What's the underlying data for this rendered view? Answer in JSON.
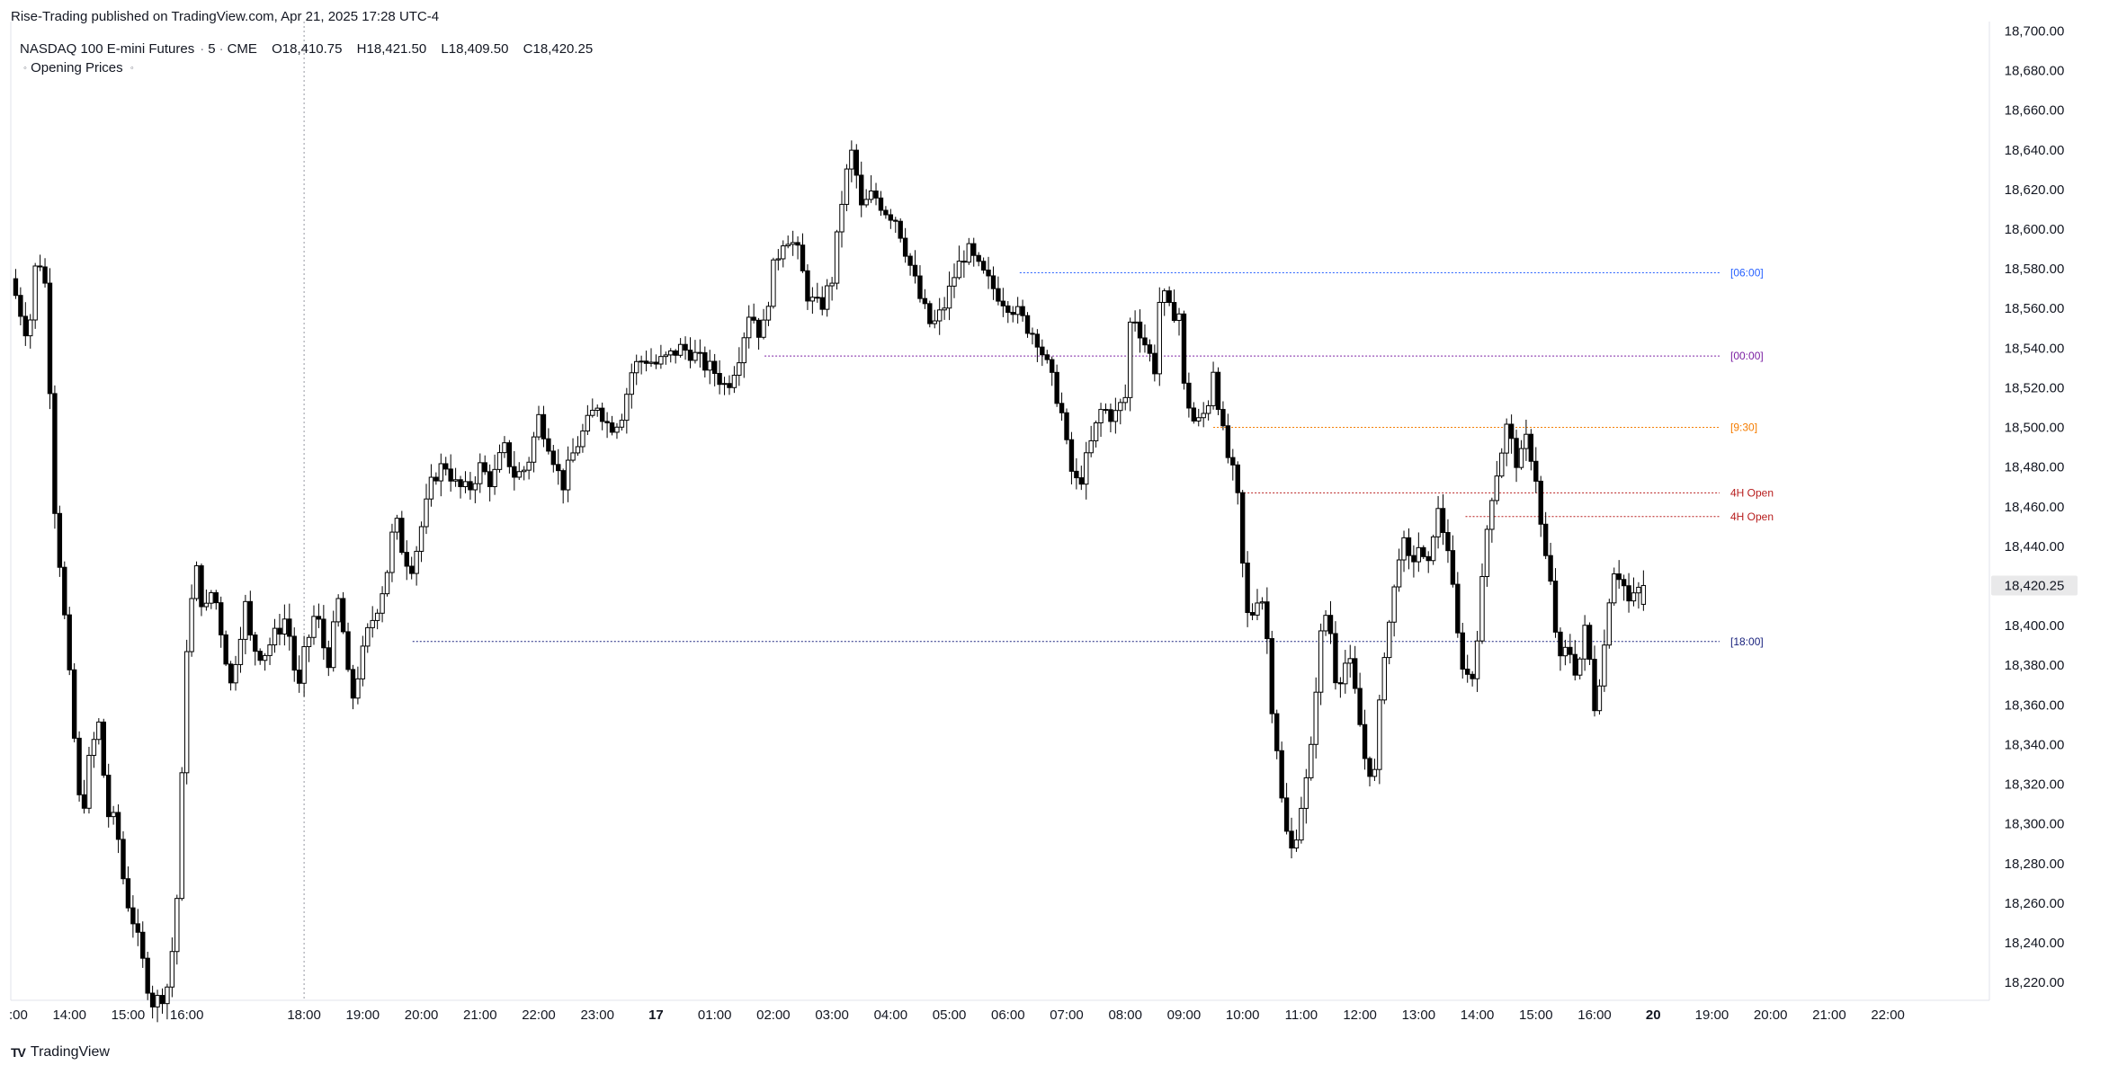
{
  "header": {
    "published_note": "Rise-Trading published on TradingView.com, Apr 21, 2025 17:28 UTC-4",
    "symbol": "NASDAQ 100 E-mini Futures",
    "interval": "5",
    "exchange": "CME",
    "ohlc": {
      "open": "O18,410.75",
      "high": "H18,421.50",
      "low": "L18,409.50",
      "close": "C18,420.25"
    },
    "indicator": "Opening Prices"
  },
  "footer": {
    "brand": "TradingView"
  },
  "colors": {
    "background": "#ffffff",
    "candle_up_body": "#ffffff",
    "candle_down_body": "#000000",
    "wick": "#000000",
    "line_0600": "#2962ff",
    "line_0000": "#7b1fa2",
    "line_0930": "#f57c00",
    "line_4h": "#b71c1c",
    "line_1800": "#1a237e",
    "axis_text": "#131722",
    "last_price_label_bg": "#e9e9ea"
  },
  "chart_data": {
    "type": "candlestick",
    "title": "NASDAQ 100 E-mini Futures · 5 · CME",
    "y_ticks": [
      18700,
      18680,
      18660,
      18640,
      18620,
      18600,
      18580,
      18560,
      18540,
      18520,
      18500,
      18480,
      18460,
      18440,
      18420,
      18400,
      18380,
      18360,
      18340,
      18320,
      18300,
      18280,
      18260,
      18240,
      18220
    ],
    "y_tick_labels": [
      "18,700.00",
      "18,680.00",
      "18,660.00",
      "18,640.00",
      "18,620.00",
      "18,600.00",
      "18,580.00",
      "18,560.00",
      "18,540.00",
      "18,520.00",
      "18,500.00",
      "18,480.00",
      "18,460.00",
      "18,440.00",
      "18,420.00",
      "18,400.00",
      "18,380.00",
      "18,360.00",
      "18,340.00",
      "18,320.00",
      "18,300.00",
      "18,280.00",
      "18,260.00",
      "18,240.00",
      "18,220.00"
    ],
    "ylim": [
      18211,
      18702
    ],
    "x_hour_range": [
      13,
      46.7
    ],
    "x_ticks": [
      {
        "h": 14,
        "label": "14:00"
      },
      {
        "h": 15,
        "label": "15:00"
      },
      {
        "h": 16,
        "label": "16:00"
      },
      {
        "h": 18,
        "label": "18:00"
      },
      {
        "h": 19,
        "label": "19:00"
      },
      {
        "h": 20,
        "label": "20:00"
      },
      {
        "h": 21,
        "label": "21:00"
      },
      {
        "h": 22,
        "label": "22:00"
      },
      {
        "h": 23,
        "label": "23:00"
      },
      {
        "h": 24,
        "label": "17",
        "bold": true
      },
      {
        "h": 25,
        "label": "01:00"
      },
      {
        "h": 26,
        "label": "02:00"
      },
      {
        "h": 27,
        "label": "03:00"
      },
      {
        "h": 28,
        "label": "04:00"
      },
      {
        "h": 29,
        "label": "05:00"
      },
      {
        "h": 30,
        "label": "06:00"
      },
      {
        "h": 31,
        "label": "07:00"
      },
      {
        "h": 32,
        "label": "08:00"
      },
      {
        "h": 33,
        "label": "09:00"
      },
      {
        "h": 34,
        "label": "10:00"
      },
      {
        "h": 35,
        "label": "11:00"
      },
      {
        "h": 36,
        "label": "12:00"
      },
      {
        "h": 37,
        "label": "13:00"
      },
      {
        "h": 38,
        "label": "14:00"
      },
      {
        "h": 39,
        "label": "15:00"
      },
      {
        "h": 40,
        "label": "16:00"
      },
      {
        "h": 41,
        "label": "20",
        "bold": true
      },
      {
        "h": 42,
        "label": "19:00"
      },
      {
        "h": 43,
        "label": "20:00"
      },
      {
        "h": 44,
        "label": "21:00"
      },
      {
        "h": 45,
        "label": "22:00"
      }
    ],
    "session_separator_h": 18,
    "last_price": 18420.25,
    "last_price_label": "18,420.25",
    "opening_price_levels": [
      {
        "label": "[06:00]",
        "price": 18578,
        "from_h": 30.2,
        "color": "#2962ff"
      },
      {
        "label": "[00:00]",
        "price": 18536,
        "from_h": 25.85,
        "color": "#7b1fa2"
      },
      {
        "label": "[9:30]",
        "price": 18500,
        "from_h": 33.5,
        "color": "#f57c00"
      },
      {
        "label": "4H Open",
        "price": 18467,
        "from_h": 33.9,
        "color": "#b71c1c"
      },
      {
        "label": "4H Open",
        "price": 18455,
        "from_h": 37.8,
        "color": "#b71c1c"
      },
      {
        "label": "[18:00]",
        "price": 18392,
        "from_h": 19.85,
        "color": "#1a237e"
      }
    ],
    "price_path": [
      [
        13.0,
        18575
      ],
      [
        13.15,
        18560
      ],
      [
        13.3,
        18545
      ],
      [
        13.45,
        18590
      ],
      [
        13.6,
        18570
      ],
      [
        13.75,
        18460
      ],
      [
        13.9,
        18410
      ],
      [
        14.05,
        18355
      ],
      [
        14.2,
        18300
      ],
      [
        14.35,
        18335
      ],
      [
        14.5,
        18350
      ],
      [
        14.65,
        18305
      ],
      [
        14.8,
        18300
      ],
      [
        14.95,
        18265
      ],
      [
        15.1,
        18250
      ],
      [
        15.25,
        18230
      ],
      [
        15.4,
        18210
      ],
      [
        15.55,
        18212
      ],
      [
        15.7,
        18220
      ],
      [
        15.85,
        18268
      ],
      [
        16.0,
        18390
      ],
      [
        16.15,
        18430
      ],
      [
        16.3,
        18405
      ],
      [
        16.45,
        18420
      ],
      [
        16.6,
        18395
      ],
      [
        16.75,
        18370
      ],
      [
        16.9,
        18395
      ],
      [
        17.0,
        18410
      ],
      [
        17.1,
        18390
      ],
      [
        17.3,
        18385
      ],
      [
        17.5,
        18395
      ],
      [
        17.7,
        18405
      ],
      [
        17.9,
        18365
      ],
      [
        18.0,
        18385
      ],
      [
        18.2,
        18408
      ],
      [
        18.4,
        18380
      ],
      [
        18.6,
        18415
      ],
      [
        18.8,
        18360
      ],
      [
        18.95,
        18380
      ],
      [
        19.1,
        18398
      ],
      [
        19.25,
        18410
      ],
      [
        19.4,
        18425
      ],
      [
        19.55,
        18455
      ],
      [
        19.7,
        18435
      ],
      [
        19.85,
        18430
      ],
      [
        20.0,
        18450
      ],
      [
        20.2,
        18475
      ],
      [
        20.4,
        18482
      ],
      [
        20.6,
        18470
      ],
      [
        20.8,
        18468
      ],
      [
        21.0,
        18480
      ],
      [
        21.2,
        18472
      ],
      [
        21.4,
        18490
      ],
      [
        21.6,
        18475
      ],
      [
        21.8,
        18480
      ],
      [
        22.0,
        18505
      ],
      [
        22.2,
        18490
      ],
      [
        22.4,
        18470
      ],
      [
        22.6,
        18488
      ],
      [
        22.8,
        18500
      ],
      [
        23.0,
        18512
      ],
      [
        23.2,
        18500
      ],
      [
        23.4,
        18505
      ],
      [
        23.6,
        18530
      ],
      [
        23.8,
        18535
      ],
      [
        24.0,
        18532
      ],
      [
        24.2,
        18535
      ],
      [
        24.4,
        18540
      ],
      [
        24.6,
        18538
      ],
      [
        24.8,
        18532
      ],
      [
        25.0,
        18528
      ],
      [
        25.2,
        18520
      ],
      [
        25.4,
        18535
      ],
      [
        25.6,
        18560
      ],
      [
        25.8,
        18545
      ],
      [
        26.0,
        18580
      ],
      [
        26.2,
        18598
      ],
      [
        26.4,
        18590
      ],
      [
        26.6,
        18565
      ],
      [
        26.8,
        18560
      ],
      [
        27.0,
        18575
      ],
      [
        27.2,
        18622
      ],
      [
        27.35,
        18640
      ],
      [
        27.5,
        18610
      ],
      [
        27.7,
        18618
      ],
      [
        27.9,
        18610
      ],
      [
        28.1,
        18605
      ],
      [
        28.3,
        18585
      ],
      [
        28.5,
        18565
      ],
      [
        28.7,
        18550
      ],
      [
        28.9,
        18560
      ],
      [
        29.1,
        18578
      ],
      [
        29.3,
        18590
      ],
      [
        29.5,
        18580
      ],
      [
        29.7,
        18572
      ],
      [
        29.9,
        18565
      ],
      [
        30.1,
        18560
      ],
      [
        30.3,
        18552
      ],
      [
        30.5,
        18545
      ],
      [
        30.7,
        18528
      ],
      [
        30.9,
        18510
      ],
      [
        31.05,
        18480
      ],
      [
        31.2,
        18470
      ],
      [
        31.4,
        18490
      ],
      [
        31.6,
        18510
      ],
      [
        31.8,
        18505
      ],
      [
        32.0,
        18515
      ],
      [
        32.1,
        18560
      ],
      [
        32.3,
        18545
      ],
      [
        32.5,
        18530
      ],
      [
        32.6,
        18570
      ],
      [
        32.8,
        18555
      ],
      [
        32.9,
        18565
      ],
      [
        33.0,
        18520
      ],
      [
        33.2,
        18500
      ],
      [
        33.4,
        18510
      ],
      [
        33.5,
        18530
      ],
      [
        33.7,
        18490
      ],
      [
        33.9,
        18470
      ],
      [
        34.0,
        18430
      ],
      [
        34.1,
        18400
      ],
      [
        34.3,
        18420
      ],
      [
        34.4,
        18400
      ],
      [
        34.5,
        18360
      ],
      [
        34.6,
        18335
      ],
      [
        34.7,
        18300
      ],
      [
        34.85,
        18285
      ],
      [
        35.0,
        18310
      ],
      [
        35.15,
        18330
      ],
      [
        35.3,
        18390
      ],
      [
        35.45,
        18410
      ],
      [
        35.6,
        18370
      ],
      [
        35.8,
        18385
      ],
      [
        35.95,
        18360
      ],
      [
        36.1,
        18330
      ],
      [
        36.25,
        18325
      ],
      [
        36.4,
        18385
      ],
      [
        36.55,
        18410
      ],
      [
        36.7,
        18445
      ],
      [
        36.85,
        18430
      ],
      [
        37.0,
        18440
      ],
      [
        37.15,
        18425
      ],
      [
        37.3,
        18460
      ],
      [
        37.5,
        18440
      ],
      [
        37.7,
        18385
      ],
      [
        37.9,
        18370
      ],
      [
        38.05,
        18410
      ],
      [
        38.2,
        18460
      ],
      [
        38.35,
        18480
      ],
      [
        38.5,
        18500
      ],
      [
        38.7,
        18480
      ],
      [
        38.85,
        18495
      ],
      [
        39.0,
        18475
      ],
      [
        39.1,
        18445
      ],
      [
        39.25,
        18420
      ],
      [
        39.4,
        18380
      ],
      [
        39.55,
        18390
      ],
      [
        39.7,
        18375
      ],
      [
        39.85,
        18400
      ],
      [
        40.0,
        18360
      ],
      [
        40.15,
        18385
      ],
      [
        40.3,
        18430
      ],
      [
        40.45,
        18425
      ],
      [
        40.6,
        18410
      ],
      [
        40.75,
        18418
      ],
      [
        40.85,
        18420.25
      ]
    ]
  }
}
